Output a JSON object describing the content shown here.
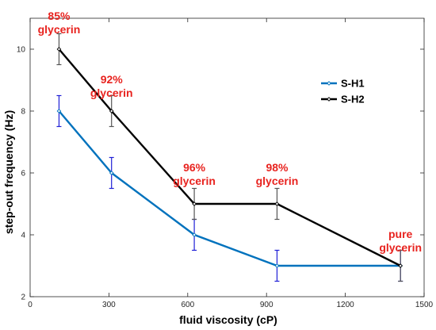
{
  "chart_data": {
    "type": "line",
    "xlabel": "fluid viscosity (cP)",
    "ylabel": "step-out frequency (Hz)",
    "xlim": [
      0,
      1500
    ],
    "ylim": [
      2,
      11
    ],
    "xticks": [
      0,
      300,
      600,
      900,
      1200,
      1500
    ],
    "yticks": [
      2,
      4,
      6,
      8,
      10
    ],
    "grid": false,
    "legend_position": "top-right",
    "series": [
      {
        "name": "S-H1",
        "color": "#0072BD",
        "marker": "diamond",
        "x": [
          110,
          310,
          625,
          940,
          1410
        ],
        "y": [
          8,
          6,
          4,
          3,
          3
        ],
        "error": [
          0.5,
          0.5,
          0.5,
          0.5,
          0.5
        ],
        "error_color": "#1f1fd6"
      },
      {
        "name": "S-H2",
        "color": "#000000",
        "marker": "diamond",
        "x": [
          110,
          310,
          625,
          940,
          1410
        ],
        "y": [
          10,
          8,
          5,
          5,
          3
        ],
        "error": [
          0.5,
          0.5,
          0.5,
          0.5,
          0.5
        ],
        "error_color": "#555555"
      }
    ],
    "annotations": [
      {
        "lines": [
          "85%",
          "glycerin"
        ],
        "x": 110,
        "color": "#e8231f"
      },
      {
        "lines": [
          "92%",
          "glycerin"
        ],
        "x": 310,
        "color": "#e8231f"
      },
      {
        "lines": [
          "96%",
          "glycerin"
        ],
        "x": 625,
        "color": "#e8231f"
      },
      {
        "lines": [
          "98%",
          "glycerin"
        ],
        "x": 940,
        "color": "#e8231f"
      },
      {
        "lines": [
          "pure",
          "glycerin"
        ],
        "x": 1410,
        "color": "#e8231f"
      }
    ]
  }
}
